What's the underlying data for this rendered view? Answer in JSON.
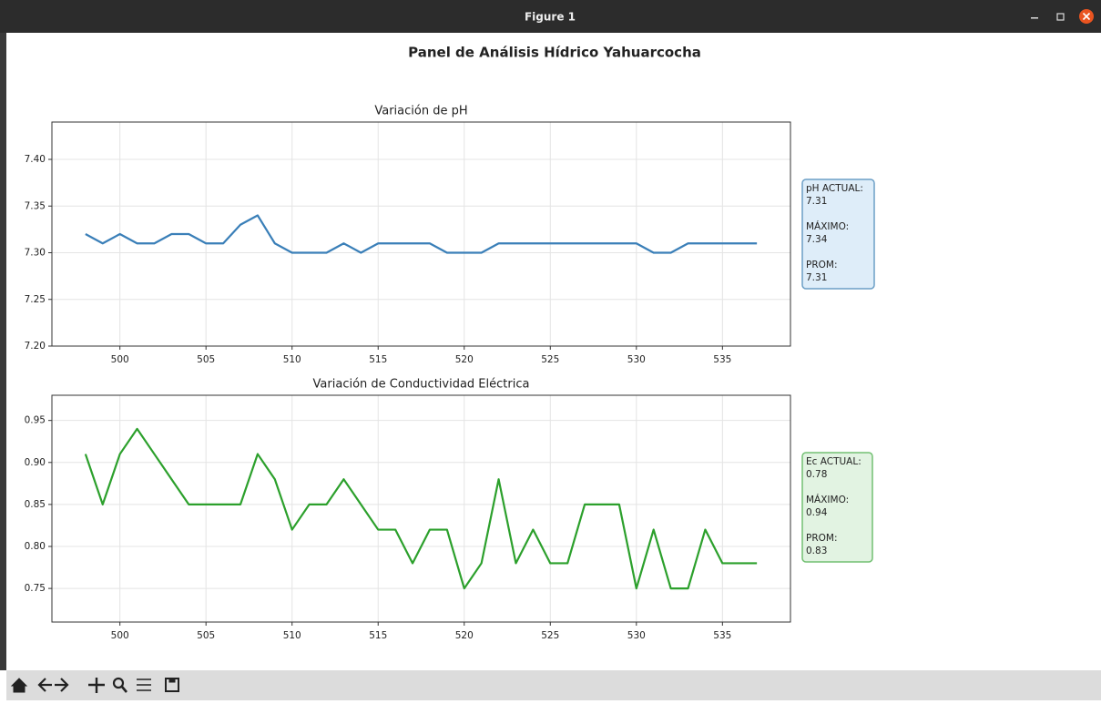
{
  "window": {
    "title": "Figure 1"
  },
  "suptitle": "Panel de Análisis Hídrico Yahuarcocha",
  "chart_data": [
    {
      "type": "line",
      "title": "Variación de pH",
      "x": [
        498,
        499,
        500,
        501,
        502,
        503,
        504,
        505,
        506,
        507,
        508,
        509,
        510,
        511,
        512,
        513,
        514,
        515,
        516,
        517,
        518,
        519,
        520,
        521,
        522,
        523,
        524,
        525,
        526,
        527,
        528,
        529,
        530,
        531,
        532,
        533,
        534,
        535,
        536,
        537
      ],
      "values": [
        7.32,
        7.31,
        7.32,
        7.31,
        7.31,
        7.32,
        7.32,
        7.31,
        7.31,
        7.33,
        7.34,
        7.31,
        7.3,
        7.3,
        7.3,
        7.31,
        7.3,
        7.31,
        7.31,
        7.31,
        7.31,
        7.3,
        7.3,
        7.3,
        7.31,
        7.31,
        7.31,
        7.31,
        7.31,
        7.31,
        7.31,
        7.31,
        7.31,
        7.3,
        7.3,
        7.31,
        7.31,
        7.31,
        7.31,
        7.31
      ],
      "color": "#3a7fb8",
      "xlim": [
        496.05,
        538.95
      ],
      "xticks": [
        500,
        505,
        510,
        515,
        520,
        525,
        530,
        535
      ],
      "ylim": [
        7.2,
        7.44
      ],
      "yticks": [
        {
          "value": 7.2,
          "label": "7.20"
        },
        {
          "value": 7.25,
          "label": "7.25"
        },
        {
          "value": 7.3,
          "label": "7.30"
        },
        {
          "value": 7.35,
          "label": "7.35"
        },
        {
          "value": 7.4,
          "label": "7.40"
        }
      ],
      "grid": true,
      "annotations": [
        {
          "label": "pH ACTUAL:",
          "value": 7.31
        },
        {
          "label": "MÁXIMO:",
          "value": 7.34
        },
        {
          "label": "PROM:",
          "value": 7.31
        }
      ],
      "annotation_fill": "#deedf9",
      "annotation_border": "#6c9fc6"
    },
    {
      "type": "line",
      "title": "Variación de Conductividad Eléctrica",
      "x": [
        498,
        499,
        500,
        501,
        502,
        503,
        504,
        505,
        506,
        507,
        508,
        509,
        510,
        511,
        512,
        513,
        514,
        515,
        516,
        517,
        518,
        519,
        520,
        521,
        522,
        523,
        524,
        525,
        526,
        527,
        528,
        529,
        530,
        531,
        532,
        533,
        534,
        535,
        536,
        537
      ],
      "values": [
        0.91,
        0.85,
        0.91,
        0.94,
        0.91,
        0.88,
        0.85,
        0.85,
        0.85,
        0.85,
        0.91,
        0.88,
        0.82,
        0.85,
        0.85,
        0.88,
        0.85,
        0.82,
        0.82,
        0.78,
        0.82,
        0.82,
        0.75,
        0.78,
        0.88,
        0.78,
        0.82,
        0.78,
        0.78,
        0.85,
        0.85,
        0.85,
        0.75,
        0.82,
        0.75,
        0.75,
        0.82,
        0.78,
        0.78,
        0.78
      ],
      "color": "#2ca02c",
      "xlim": [
        496.05,
        538.95
      ],
      "xticks": [
        500,
        505,
        510,
        515,
        520,
        525,
        530,
        535
      ],
      "ylim": [
        0.71,
        0.98
      ],
      "yticks": [
        0.75,
        {
          "value": 0.8,
          "label": "0.80"
        },
        0.85,
        {
          "value": 0.9,
          "label": "0.90"
        },
        0.95
      ],
      "grid": true,
      "annotations": [
        {
          "label": "Ec ACTUAL:",
          "value": 0.78
        },
        {
          "label": "MÁXIMO:",
          "value": 0.94
        },
        {
          "label": "PROM:",
          "value": 0.83
        }
      ],
      "annotation_fill": "#e2f3e2",
      "annotation_border": "#72c072"
    }
  ]
}
